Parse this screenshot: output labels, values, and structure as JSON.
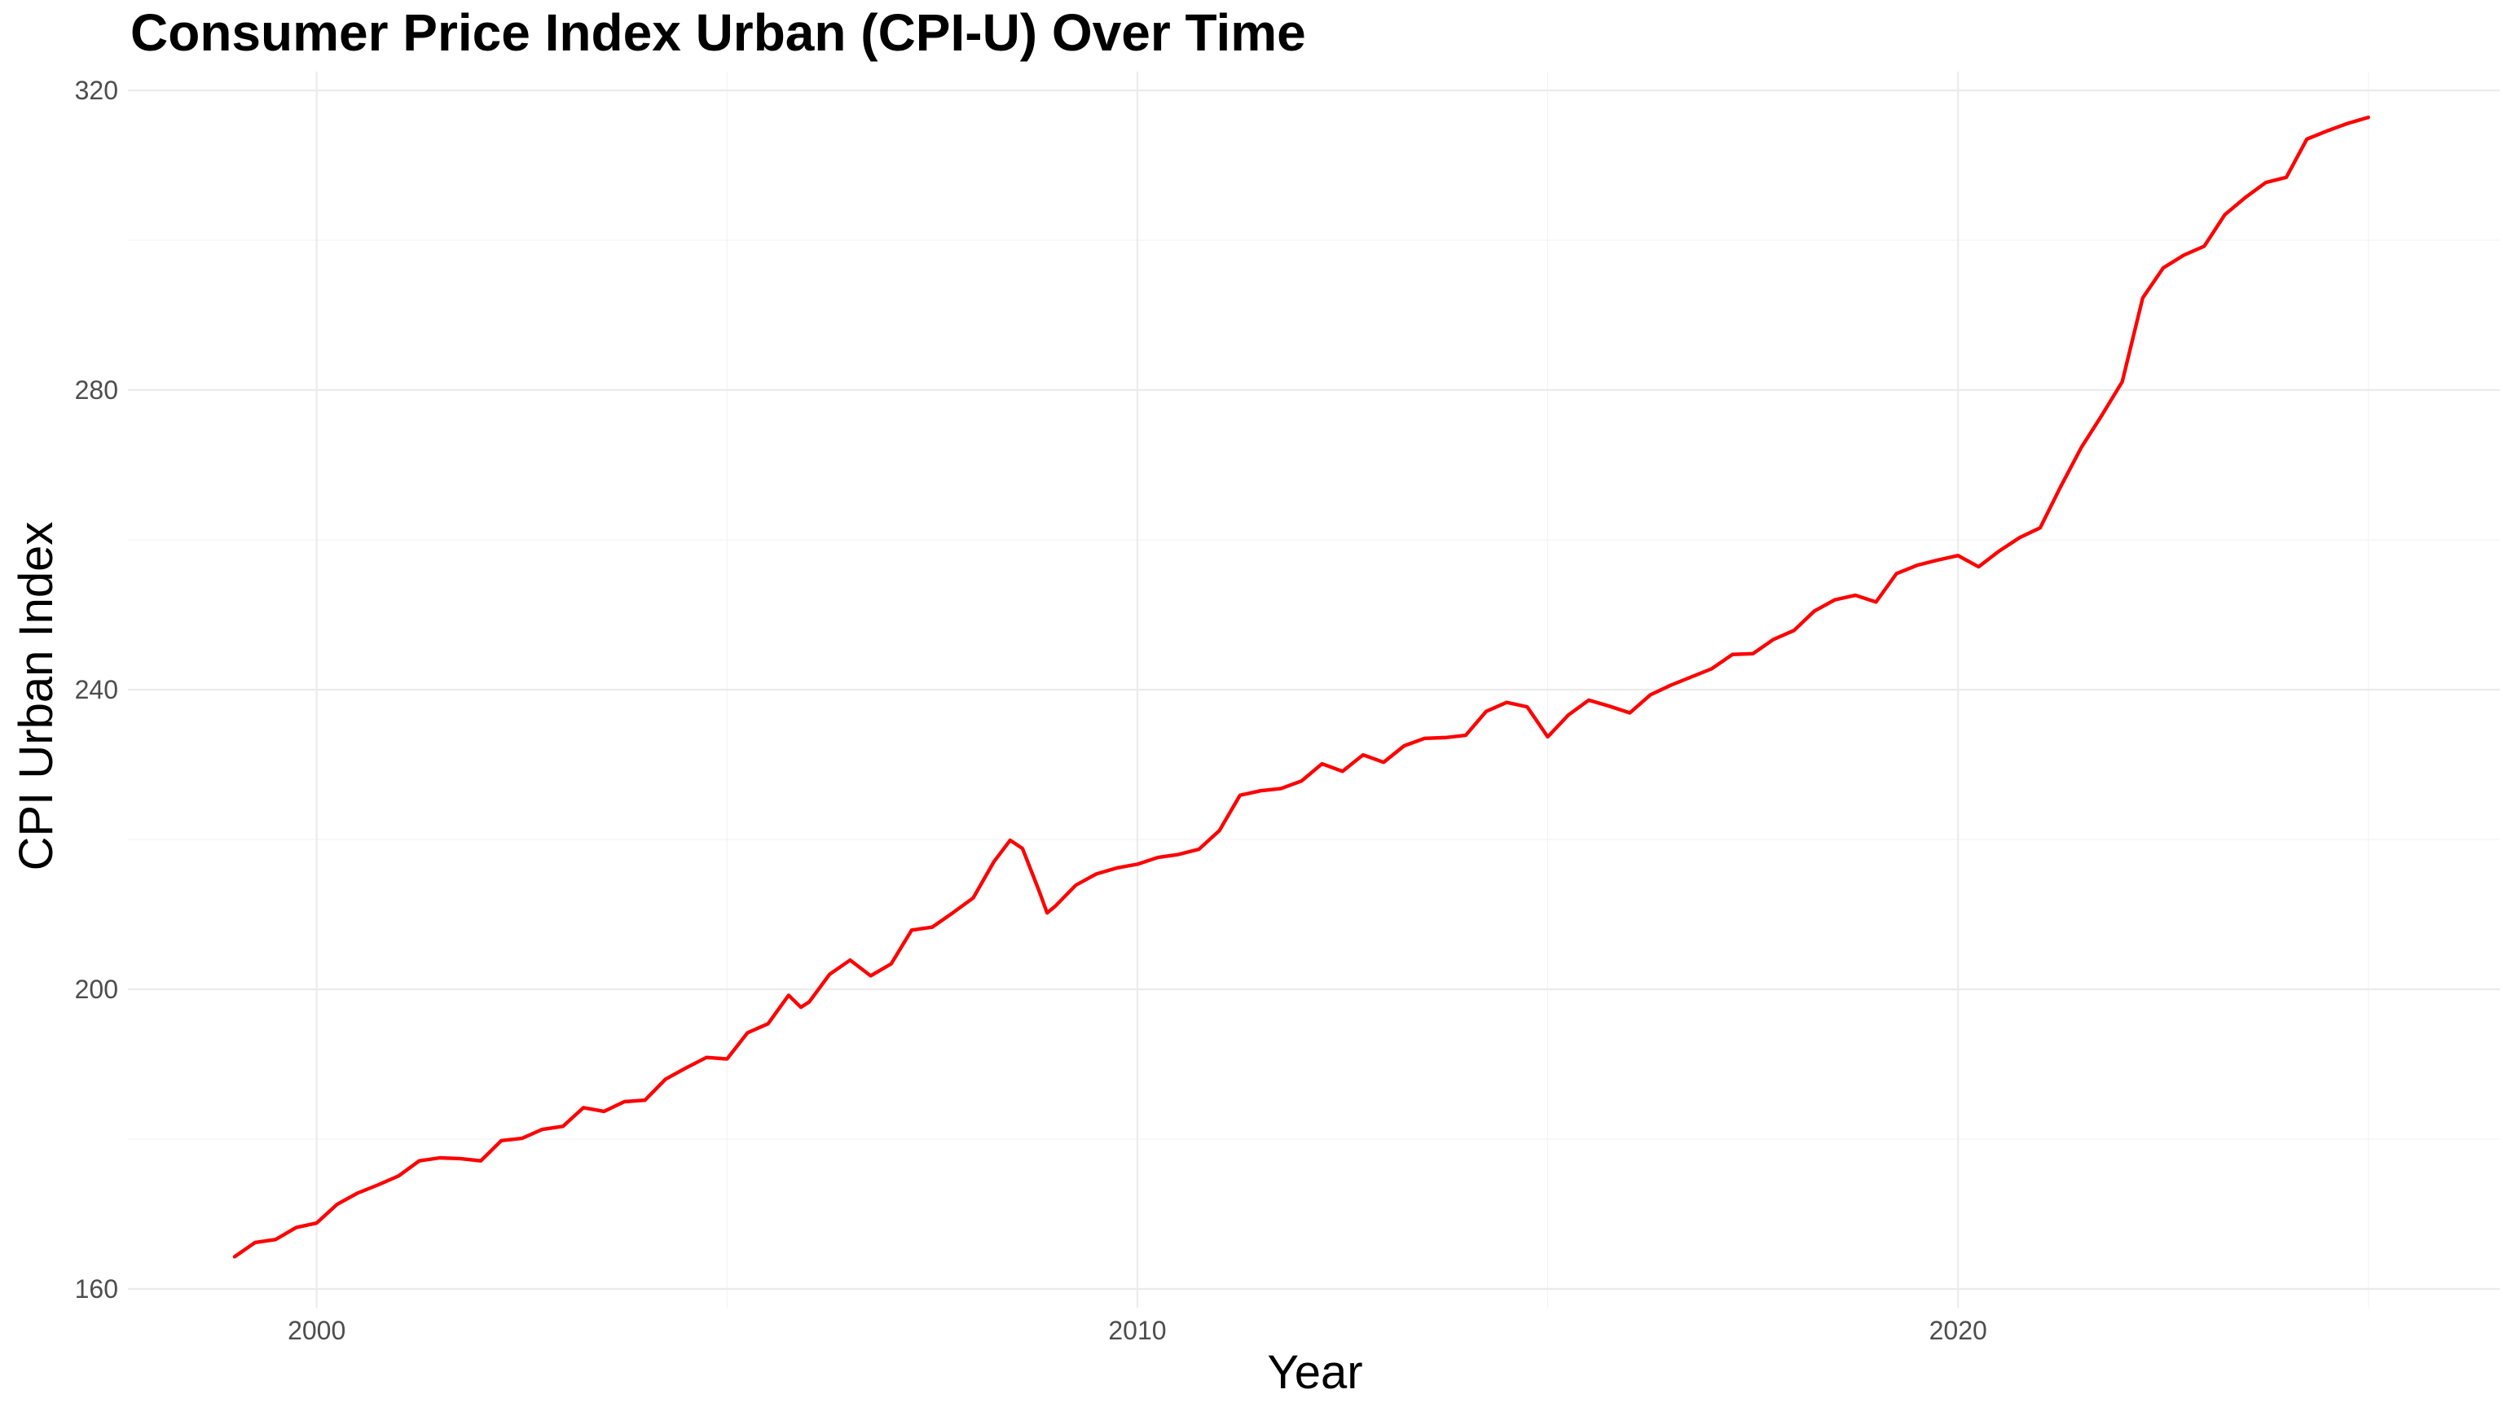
{
  "chart_data": {
    "type": "line",
    "title": "Consumer Price Index Urban (CPI-U) Over Time",
    "xlabel": "Year",
    "ylabel": "CPI Urban Index",
    "xlim": [
      1997.7,
      2026.6
    ],
    "ylim": [
      157.5,
      322.5
    ],
    "x_ticks": [
      2000,
      2010,
      2020
    ],
    "y_ticks": [
      160,
      200,
      240,
      280,
      320
    ],
    "grid": true,
    "legend": "none",
    "colors": {
      "line": "#ff0000",
      "grid": "#ebebeb",
      "background": "#ffffff"
    },
    "series": [
      {
        "x": [
          1999.0,
          1999.25,
          1999.5,
          1999.75,
          2000.0,
          2000.25,
          2000.5,
          2000.75,
          2001.0,
          2001.25,
          2001.5,
          2001.75,
          2002.0,
          2002.25,
          2002.5,
          2002.75,
          2003.0,
          2003.25,
          2003.5,
          2003.75,
          2004.0,
          2004.25,
          2004.5,
          2004.75,
          2005.0,
          2005.25,
          2005.5,
          2005.75,
          2005.9,
          2006.0,
          2006.25,
          2006.5,
          2006.75,
          2007.0,
          2007.25,
          2007.5,
          2007.75,
          2008.0,
          2008.25,
          2008.45,
          2008.6,
          2008.8,
          2008.9,
          2009.0,
          2009.25,
          2009.5,
          2009.75,
          2010.0,
          2010.25,
          2010.5,
          2010.75,
          2011.0,
          2011.25,
          2011.5,
          2011.75,
          2012.0,
          2012.25,
          2012.5,
          2012.75,
          2013.0,
          2013.25,
          2013.5,
          2013.75,
          2014.0,
          2014.25,
          2014.5,
          2014.75,
          2015.0,
          2015.25,
          2015.5,
          2015.75,
          2016.0,
          2016.25,
          2016.5,
          2016.75,
          2017.0,
          2017.25,
          2017.5,
          2017.75,
          2018.0,
          2018.25,
          2018.5,
          2018.75,
          2019.0,
          2019.25,
          2019.5,
          2019.75,
          2020.0,
          2020.25,
          2020.5,
          2020.75,
          2021.0,
          2021.25,
          2021.5,
          2021.75,
          2022.0,
          2022.25,
          2022.5,
          2022.75,
          2023.0,
          2023.25,
          2023.5,
          2023.75,
          2024.0,
          2024.25,
          2024.5,
          2024.75,
          2025.0
        ],
        "y": [
          164.3,
          166.2,
          166.6,
          168.2,
          168.8,
          171.3,
          172.8,
          173.9,
          175.1,
          177.1,
          177.5,
          177.4,
          177.1,
          179.8,
          180.1,
          181.3,
          181.7,
          184.2,
          183.7,
          185.0,
          185.2,
          188.0,
          189.5,
          190.9,
          190.7,
          194.2,
          195.4,
          199.2,
          197.6,
          198.3,
          202.0,
          203.9,
          201.8,
          203.4,
          207.9,
          208.3,
          210.2,
          212.2,
          217.0,
          219.9,
          218.8,
          213.2,
          210.2,
          211.1,
          213.9,
          215.4,
          216.2,
          216.7,
          217.6,
          218.0,
          218.7,
          221.2,
          225.9,
          226.5,
          226.8,
          227.8,
          230.1,
          229.1,
          231.3,
          230.3,
          232.5,
          233.5,
          233.6,
          233.9,
          237.1,
          238.3,
          237.7,
          233.7,
          236.6,
          238.6,
          237.8,
          236.9,
          239.3,
          240.6,
          241.7,
          242.8,
          244.7,
          244.8,
          246.7,
          247.9,
          250.5,
          252.0,
          252.6,
          251.7,
          255.5,
          256.6,
          257.3,
          257.9,
          256.4,
          258.5,
          260.3,
          261.6,
          267.1,
          272.3,
          276.6,
          281.1,
          292.3,
          296.3,
          298.0,
          299.2,
          303.4,
          305.7,
          307.7,
          308.4,
          313.5,
          314.6,
          315.6,
          316.4
        ]
      }
    ]
  }
}
